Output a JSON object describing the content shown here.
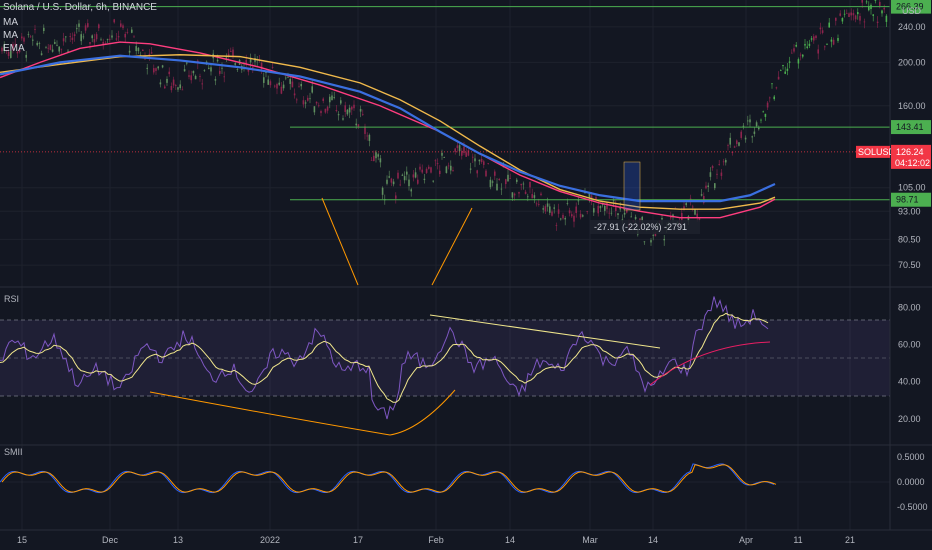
{
  "header": {
    "symbol_title": "Solana / U.S. Dollar, 6h, BINANCE",
    "indicators": [
      "MA",
      "MA",
      "EMA"
    ]
  },
  "chart_data": {
    "type": "line",
    "price_pane": {
      "currency": "USD",
      "y_ticks": [
        "240.00",
        "200.00",
        "160.00",
        "105.00",
        "93.00",
        "80.50",
        "70.50"
      ],
      "y_scale": "log",
      "horizontal_levels": [
        {
          "label": "143.41",
          "value": 143.41,
          "color": "#4caf50"
        },
        {
          "label": "98.71",
          "value": 98.71,
          "color": "#4caf50"
        },
        {
          "label": "266.39",
          "value": 266.39,
          "color": "#4caf50"
        }
      ],
      "last_price": {
        "symbol": "SOLUSD",
        "price": "126.24",
        "countdown": "04:12:02",
        "color": "#f23645"
      },
      "measure_label": "-27.91 (-22.02%) -2791",
      "moving_averages": [
        {
          "name": "MA",
          "color": "#ff3d7f",
          "x": [
            0,
            40,
            80,
            120,
            150,
            200,
            260,
            320,
            380,
            440,
            480,
            520,
            560,
            600,
            640,
            680,
            720,
            760,
            775
          ],
          "y": [
            185,
            200,
            215,
            222,
            220,
            210,
            195,
            178,
            160,
            140,
            125,
            112,
            103,
            97,
            93,
            90,
            90,
            95,
            99
          ]
        },
        {
          "name": "MA",
          "color": "#f0b94b",
          "x": [
            0,
            60,
            120,
            180,
            240,
            300,
            360,
            400,
            440,
            480,
            520,
            560,
            600,
            640,
            680,
            720,
            760,
            775
          ],
          "y": [
            190,
            198,
            206,
            208,
            206,
            195,
            180,
            165,
            148,
            130,
            115,
            104,
            98,
            95,
            94,
            94,
            97,
            100
          ]
        },
        {
          "name": "EMA",
          "color": "#3a6fe0",
          "x": [
            0,
            60,
            120,
            180,
            240,
            300,
            360,
            400,
            440,
            480,
            520,
            560,
            600,
            640,
            680,
            720,
            750,
            775
          ],
          "y": [
            188,
            200,
            207,
            202,
            195,
            186,
            172,
            158,
            140,
            125,
            114,
            106,
            101,
            98,
            98,
            98,
            101,
            107
          ]
        }
      ]
    },
    "rsi_pane": {
      "title": "RSI",
      "y_ticks": [
        "80.00",
        "60.00",
        "40.00",
        "20.00"
      ],
      "band": [
        30,
        70
      ],
      "midline": 50
    },
    "smii_pane": {
      "title": "SMII",
      "y_ticks": [
        "0.5000",
        "0.0000",
        "-0.5000"
      ]
    },
    "x_ticks": [
      "15",
      "Dec",
      "13",
      "2022",
      "17",
      "Feb",
      "14",
      "Mar",
      "14",
      "Apr",
      "11",
      "21"
    ]
  }
}
